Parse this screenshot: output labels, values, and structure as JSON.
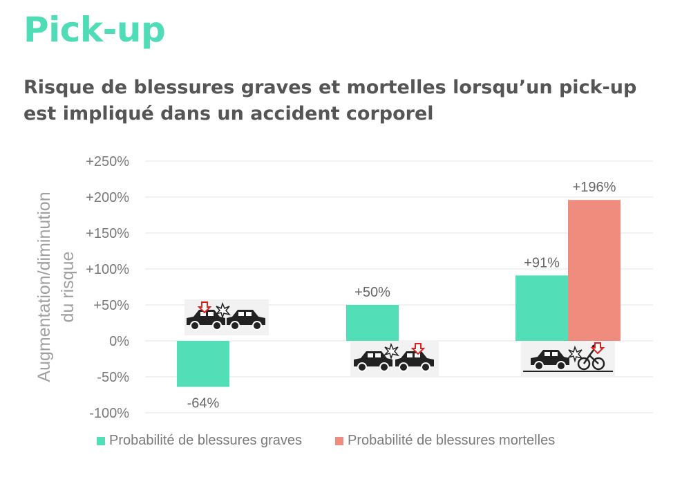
{
  "header": {
    "title": "Pick-up",
    "subtitle": "Risque de blessures graves et mortelles lorsqu’un pick-up est impliqué dans un accident corporel"
  },
  "colors": {
    "title": "#4fdcb6",
    "subtitle": "#555555",
    "graves": "#52dfb8",
    "mortelles": "#f08c7e",
    "text": "#7a7a7a",
    "grid": "#e6e6e6"
  },
  "chart_data": {
    "type": "bar",
    "title": "Risque de blessures graves et mortelles lorsqu’un pick-up est impliqué dans un accident corporel",
    "ylabel": "Augmentation/diminution du risque",
    "ylabel_lines": [
      "Augmentation/diminution",
      "du risque"
    ],
    "xlabel": "",
    "ylim": [
      -100,
      250
    ],
    "yticks": [
      250,
      200,
      150,
      100,
      50,
      0,
      -50,
      -100
    ],
    "ytick_labels": [
      "+250%",
      "+200%",
      "+150%",
      "+100%",
      "+50%",
      "0%",
      "-50%",
      "-100%"
    ],
    "grid": true,
    "legend_position": "bottom",
    "categories": [
      {
        "icon": "pickup-hits-car-front-icon"
      },
      {
        "icon": "pickup-hits-car-rear-icon"
      },
      {
        "icon": "pickup-hits-cyclist-icon"
      }
    ],
    "series": [
      {
        "name": "Probabilité de blessures graves",
        "color": "#52dfb8",
        "values": [
          -64,
          50,
          91
        ],
        "labels": [
          "-64%",
          "+50%",
          "+91%"
        ]
      },
      {
        "name": "Probabilité de blessures mortelles",
        "color": "#f08c7e",
        "values": [
          null,
          null,
          196
        ],
        "labels": [
          "",
          "",
          "+196%"
        ]
      }
    ]
  }
}
